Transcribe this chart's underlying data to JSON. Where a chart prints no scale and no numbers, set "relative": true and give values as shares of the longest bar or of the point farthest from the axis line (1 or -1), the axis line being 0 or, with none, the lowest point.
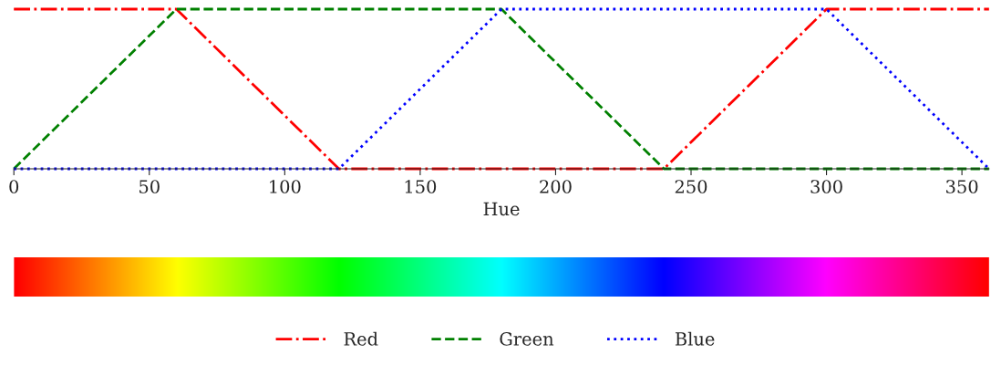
{
  "chart_data": {
    "type": "line",
    "xlabel": "Hue",
    "relative": true,
    "xlim": [
      0,
      360
    ],
    "xticks": [
      0,
      50,
      100,
      150,
      200,
      250,
      300,
      350
    ],
    "legend": "bottom",
    "grid": false,
    "series": [
      {
        "name": "Red",
        "color": "#ff0000",
        "line_style": "dashdot",
        "x": [
          0,
          60,
          120,
          240,
          300,
          360
        ],
        "values": [
          1,
          1,
          0,
          0,
          1,
          1
        ]
      },
      {
        "name": "Green",
        "color": "#008000",
        "line_style": "dashed",
        "x": [
          0,
          60,
          180,
          240,
          360
        ],
        "values": [
          0,
          1,
          1,
          0,
          0
        ]
      },
      {
        "name": "Blue",
        "color": "#0000ff",
        "line_style": "dotted",
        "x": [
          0,
          120,
          180,
          300,
          360
        ],
        "values": [
          0,
          0,
          1,
          1,
          0
        ]
      }
    ]
  }
}
